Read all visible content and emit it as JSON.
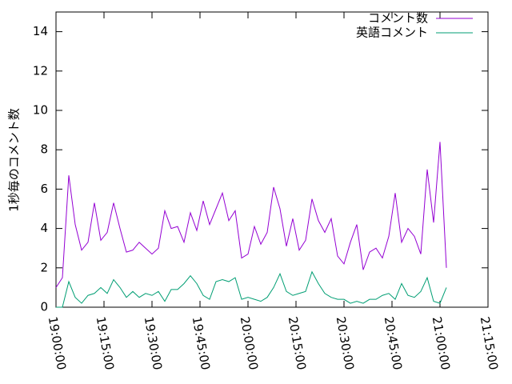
{
  "chart_data": {
    "type": "line",
    "ylabel": "1秒毎のコメント数",
    "x": [
      "19:00:00",
      "19:02:00",
      "19:04:00",
      "19:06:00",
      "19:08:00",
      "19:10:00",
      "19:12:00",
      "19:14:00",
      "19:16:00",
      "19:18:00",
      "19:20:00",
      "19:22:00",
      "19:24:00",
      "19:26:00",
      "19:28:00",
      "19:30:00",
      "19:32:00",
      "19:34:00",
      "19:36:00",
      "19:38:00",
      "19:40:00",
      "19:42:00",
      "19:44:00",
      "19:46:00",
      "19:48:00",
      "19:50:00",
      "19:52:00",
      "19:54:00",
      "19:56:00",
      "19:58:00",
      "20:00:00",
      "20:02:00",
      "20:04:00",
      "20:06:00",
      "20:08:00",
      "20:10:00",
      "20:12:00",
      "20:14:00",
      "20:16:00",
      "20:18:00",
      "20:20:00",
      "20:22:00",
      "20:24:00",
      "20:26:00",
      "20:28:00",
      "20:30:00",
      "20:32:00",
      "20:34:00",
      "20:36:00",
      "20:38:00",
      "20:40:00",
      "20:42:00",
      "20:44:00",
      "20:46:00",
      "20:48:00",
      "20:50:00",
      "20:52:00",
      "20:54:00",
      "20:56:00",
      "20:58:00",
      "21:00:00",
      "21:02:00"
    ],
    "series": [
      {
        "name": "コメント数",
        "color": "#9400d3",
        "values": [
          1.0,
          1.5,
          6.7,
          4.2,
          2.9,
          3.3,
          5.3,
          3.4,
          3.8,
          5.3,
          4.0,
          2.8,
          2.9,
          3.3,
          3.0,
          2.7,
          3.0,
          4.9,
          4.0,
          4.1,
          3.3,
          4.8,
          3.9,
          5.4,
          4.2,
          5.0,
          5.8,
          4.4,
          4.9,
          2.5,
          2.7,
          4.1,
          3.2,
          3.8,
          6.1,
          5.0,
          3.1,
          4.5,
          2.9,
          3.4,
          5.5,
          4.4,
          3.8,
          4.5,
          2.6,
          2.2,
          3.3,
          4.2,
          1.9,
          2.8,
          3.0,
          2.5,
          3.6,
          5.8,
          3.3,
          4.0,
          3.6,
          2.7,
          7.0,
          4.3,
          8.4,
          2.0
        ]
      },
      {
        "name": "英語コメント",
        "color": "#009e73",
        "values": [
          0,
          0,
          1.3,
          0.5,
          0.2,
          0.6,
          0.7,
          1.0,
          0.7,
          1.4,
          1.0,
          0.5,
          0.8,
          0.5,
          0.7,
          0.6,
          0.8,
          0.3,
          0.9,
          0.9,
          1.2,
          1.6,
          1.2,
          0.6,
          0.4,
          1.3,
          1.4,
          1.3,
          1.5,
          0.4,
          0.5,
          0.4,
          0.3,
          0.5,
          1.0,
          1.7,
          0.8,
          0.6,
          0.7,
          0.8,
          1.8,
          1.2,
          0.7,
          0.5,
          0.4,
          0.4,
          0.2,
          0.3,
          0.2,
          0.4,
          0.4,
          0.6,
          0.7,
          0.4,
          1.2,
          0.6,
          0.5,
          0.8,
          1.5,
          0.3,
          0.2,
          1.0
        ]
      }
    ],
    "xlim": [
      "19:00:00",
      "21:15:00"
    ],
    "xticks": [
      "19:00:00",
      "19:15:00",
      "19:30:00",
      "19:45:00",
      "20:00:00",
      "20:15:00",
      "20:30:00",
      "20:45:00",
      "21:00:00",
      "21:15:00"
    ],
    "ylim": [
      0,
      15
    ],
    "yticks": [
      0,
      2,
      4,
      6,
      8,
      10,
      12,
      14
    ],
    "legend": "top-right"
  }
}
